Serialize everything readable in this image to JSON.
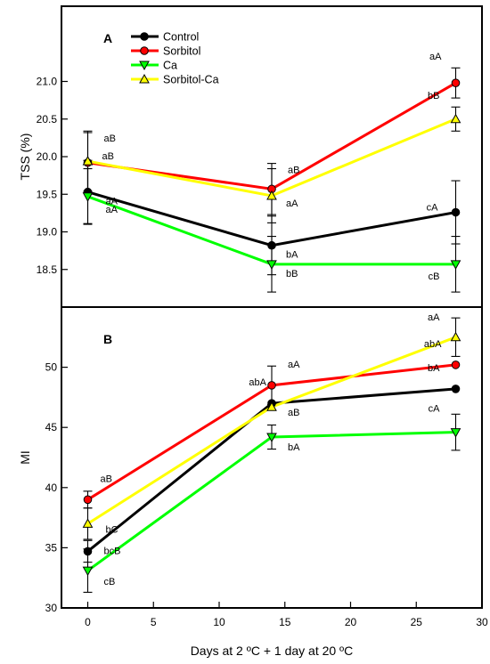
{
  "chart_data": [
    {
      "type": "line",
      "panel": "A",
      "ylabel": "TSS (%)",
      "ylim": [
        18.0,
        22.0
      ],
      "yticks": [
        18.5,
        19.0,
        19.5,
        20.0,
        20.5,
        21.0
      ],
      "ytick_labels": [
        "18.5",
        "19.0",
        "19.5",
        "20.0",
        "20.5",
        "21.0"
      ],
      "x": [
        0,
        14,
        28
      ],
      "series": [
        {
          "name": "Control",
          "color": "#000000",
          "marker": "circle",
          "fill": "#000000",
          "values": [
            19.53,
            18.82,
            19.26
          ],
          "err": [
            0.42,
            0.39,
            0.42
          ],
          "labels": [
            "aA",
            "bA",
            "cA"
          ]
        },
        {
          "name": "Sorbitol",
          "color": "#ff0000",
          "marker": "circle",
          "fill": "#ff0000",
          "values": [
            19.92,
            19.57,
            20.98
          ],
          "err": [
            0.4,
            0.34,
            0.2
          ],
          "labels": [
            "aB",
            "aB",
            "aA"
          ]
        },
        {
          "name": "Ca",
          "color": "#00ff00",
          "marker": "triangle-down",
          "fill": "#00ff00",
          "values": [
            19.47,
            18.57,
            18.57
          ],
          "err": [
            0.37,
            0.37,
            0.37
          ],
          "labels": [
            "aA",
            "bB",
            "cB"
          ]
        },
        {
          "name": "Sorbitol-Ca",
          "color": "#ffff00",
          "marker": "triangle-up",
          "fill": "#ffff00",
          "values": [
            19.94,
            19.48,
            20.5
          ],
          "err": [
            0.4,
            0.36,
            0.16
          ],
          "labels": [
            "aB",
            "aA",
            "bB"
          ]
        }
      ],
      "legend": "top-left"
    },
    {
      "type": "line",
      "panel": "B",
      "ylabel": "MI",
      "xlabel": "Days at 2 ºC + 1 day at 20 ºC",
      "ylim": [
        30,
        55
      ],
      "xlim": [
        -2,
        30
      ],
      "yticks": [
        30,
        35,
        40,
        45,
        50
      ],
      "ytick_labels": [
        "30",
        "35",
        "40",
        "45",
        "50"
      ],
      "xticks": [
        0,
        5,
        10,
        15,
        20,
        25,
        30
      ],
      "xtick_labels": [
        "0",
        "5",
        "10",
        "15",
        "20",
        "25",
        "30"
      ],
      "x": [
        0,
        14,
        28
      ],
      "series": [
        {
          "name": "Control",
          "color": "#000000",
          "marker": "circle",
          "fill": "#000000",
          "values": [
            34.7,
            47.0,
            48.2
          ],
          "err": [
            0.9,
            0.0,
            0.0
          ],
          "labels": [
            "bcB",
            "abA",
            "bA"
          ]
        },
        {
          "name": "Sorbitol",
          "color": "#ff0000",
          "marker": "circle",
          "fill": "#ff0000",
          "values": [
            39.0,
            48.5,
            50.2
          ],
          "err": [
            0.7,
            1.6,
            0.0
          ],
          "labels": [
            "aB",
            "aA",
            "abA"
          ]
        },
        {
          "name": "Ca",
          "color": "#00ff00",
          "marker": "triangle-down",
          "fill": "#00ff00",
          "values": [
            33.1,
            44.2,
            44.6
          ],
          "err": [
            1.8,
            1.0,
            1.5
          ],
          "labels": [
            "cB",
            "bA",
            "cA"
          ]
        },
        {
          "name": "Sorbitol-Ca",
          "color": "#ffff00",
          "marker": "triangle-up",
          "fill": "#ffff00",
          "values": [
            37.0,
            46.7,
            52.5
          ],
          "err": [
            1.3,
            0.0,
            1.6
          ],
          "labels": [
            "bC",
            "aB",
            "aA"
          ]
        }
      ]
    }
  ]
}
